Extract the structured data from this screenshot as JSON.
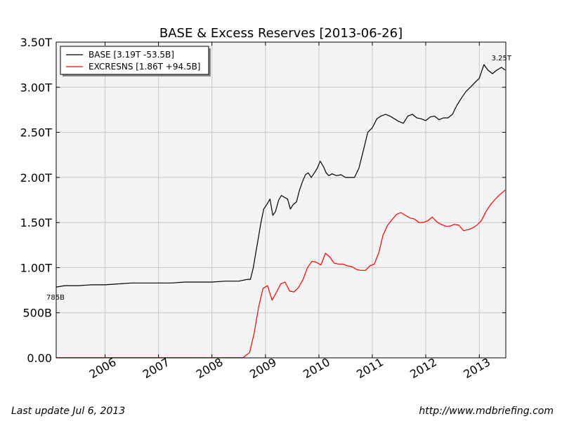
{
  "chart_data": {
    "type": "line",
    "title": "BASE & Excess Reserves  [2013-06-26]",
    "xlabel": "",
    "ylabel": "",
    "xlim": [
      "2005-02-01",
      "2013-07-01"
    ],
    "ylim": [
      0,
      3.5
    ],
    "grid": true,
    "legend_position": "top-left",
    "x_ticks": [
      {
        "date": "2006-01-01",
        "label": "2006"
      },
      {
        "date": "2007-01-01",
        "label": "2007"
      },
      {
        "date": "2008-01-01",
        "label": "2008"
      },
      {
        "date": "2009-01-01",
        "label": "2009"
      },
      {
        "date": "2010-01-01",
        "label": "2010"
      },
      {
        "date": "2011-01-01",
        "label": "2011"
      },
      {
        "date": "2012-01-01",
        "label": "2012"
      },
      {
        "date": "2013-01-01",
        "label": "2013"
      }
    ],
    "y_ticks": [
      {
        "value": 0,
        "label": "0.00"
      },
      {
        "value": 0.5,
        "label": "500B"
      },
      {
        "value": 1.0,
        "label": "1.00T"
      },
      {
        "value": 1.5,
        "label": "1.50T"
      },
      {
        "value": 2.0,
        "label": "2.00T"
      },
      {
        "value": 2.5,
        "label": "2.50T"
      },
      {
        "value": 3.0,
        "label": "3.00T"
      },
      {
        "value": 3.5,
        "label": "3.50T"
      }
    ],
    "series": [
      {
        "name": "BASE [3.19T -53.5B]",
        "color": "#000000",
        "x": [
          "2005-02-01",
          "2005-04-01",
          "2005-07-01",
          "2005-10-01",
          "2006-01-01",
          "2006-04-01",
          "2006-07-01",
          "2006-10-01",
          "2007-01-01",
          "2007-04-01",
          "2007-07-01",
          "2007-10-01",
          "2008-01-01",
          "2008-04-01",
          "2008-07-01",
          "2008-09-01",
          "2008-09-20",
          "2008-10-10",
          "2008-10-25",
          "2008-11-10",
          "2008-12-01",
          "2008-12-20",
          "2009-01-10",
          "2009-02-01",
          "2009-02-20",
          "2009-03-10",
          "2009-04-01",
          "2009-04-20",
          "2009-05-10",
          "2009-06-01",
          "2009-06-20",
          "2009-07-10",
          "2009-08-01",
          "2009-08-20",
          "2009-09-10",
          "2009-10-01",
          "2009-10-20",
          "2009-11-10",
          "2009-12-01",
          "2009-12-20",
          "2010-01-10",
          "2010-02-01",
          "2010-02-20",
          "2010-03-10",
          "2010-04-01",
          "2010-05-01",
          "2010-06-01",
          "2010-07-01",
          "2010-08-01",
          "2010-09-01",
          "2010-10-01",
          "2010-11-01",
          "2010-12-01",
          "2011-01-01",
          "2011-02-01",
          "2011-03-01",
          "2011-04-01",
          "2011-05-01",
          "2011-06-01",
          "2011-07-01",
          "2011-08-01",
          "2011-09-01",
          "2011-10-01",
          "2011-11-01",
          "2011-12-01",
          "2012-01-01",
          "2012-02-01",
          "2012-03-01",
          "2012-04-01",
          "2012-05-01",
          "2012-06-01",
          "2012-07-01",
          "2012-08-01",
          "2012-09-01",
          "2012-10-01",
          "2012-11-01",
          "2012-12-01",
          "2013-01-01",
          "2013-02-01",
          "2013-03-01",
          "2013-04-01",
          "2013-05-01",
          "2013-06-01",
          "2013-06-26"
        ],
        "values": [
          0.785,
          0.8,
          0.8,
          0.81,
          0.81,
          0.82,
          0.83,
          0.83,
          0.83,
          0.83,
          0.84,
          0.84,
          0.84,
          0.85,
          0.85,
          0.87,
          0.87,
          1.0,
          1.15,
          1.3,
          1.5,
          1.65,
          1.7,
          1.76,
          1.58,
          1.62,
          1.75,
          1.8,
          1.78,
          1.76,
          1.65,
          1.7,
          1.73,
          1.85,
          1.95,
          2.03,
          2.05,
          2.0,
          2.05,
          2.1,
          2.18,
          2.12,
          2.05,
          2.02,
          2.04,
          2.02,
          2.03,
          2.0,
          2.0,
          2.0,
          2.1,
          2.3,
          2.5,
          2.55,
          2.65,
          2.68,
          2.7,
          2.68,
          2.65,
          2.62,
          2.6,
          2.68,
          2.7,
          2.66,
          2.65,
          2.63,
          2.67,
          2.68,
          2.64,
          2.66,
          2.66,
          2.7,
          2.8,
          2.88,
          2.95,
          3.0,
          3.05,
          3.1,
          3.25,
          3.19,
          3.15,
          3.19,
          3.22,
          3.19
        ]
      },
      {
        "name": "EXCRESNS [1.86T +94.5B]",
        "color": "#ff0000",
        "x": [
          "2005-02-01",
          "2008-08-01",
          "2008-09-15",
          "2008-10-15",
          "2008-11-15",
          "2008-12-15",
          "2009-01-15",
          "2009-02-15",
          "2009-03-15",
          "2009-04-15",
          "2009-05-15",
          "2009-06-15",
          "2009-07-15",
          "2009-08-15",
          "2009-09-15",
          "2009-10-15",
          "2009-11-15",
          "2009-12-15",
          "2010-01-15",
          "2010-02-15",
          "2010-03-15",
          "2010-04-15",
          "2010-05-15",
          "2010-06-15",
          "2010-07-15",
          "2010-08-15",
          "2010-09-15",
          "2010-10-15",
          "2010-11-15",
          "2010-12-15",
          "2011-01-15",
          "2011-02-15",
          "2011-03-15",
          "2011-04-15",
          "2011-05-15",
          "2011-06-15",
          "2011-07-15",
          "2011-08-15",
          "2011-09-15",
          "2011-10-15",
          "2011-11-15",
          "2011-12-15",
          "2012-01-15",
          "2012-02-15",
          "2012-03-15",
          "2012-04-15",
          "2012-05-15",
          "2012-06-15",
          "2012-07-15",
          "2012-08-15",
          "2012-09-15",
          "2012-10-15",
          "2012-11-15",
          "2012-12-15",
          "2013-01-15",
          "2013-02-15",
          "2013-03-15",
          "2013-04-15",
          "2013-05-15",
          "2013-06-26"
        ],
        "values": [
          0.002,
          0.002,
          0.06,
          0.27,
          0.56,
          0.77,
          0.8,
          0.64,
          0.72,
          0.82,
          0.84,
          0.74,
          0.73,
          0.78,
          0.87,
          1.0,
          1.07,
          1.06,
          1.03,
          1.16,
          1.12,
          1.05,
          1.04,
          1.04,
          1.02,
          1.01,
          0.98,
          0.97,
          0.97,
          1.02,
          1.04,
          1.17,
          1.36,
          1.47,
          1.53,
          1.59,
          1.61,
          1.58,
          1.55,
          1.54,
          1.5,
          1.5,
          1.52,
          1.56,
          1.51,
          1.48,
          1.46,
          1.46,
          1.48,
          1.47,
          1.41,
          1.42,
          1.44,
          1.47,
          1.52,
          1.62,
          1.69,
          1.75,
          1.8,
          1.86
        ]
      }
    ],
    "annotations": [
      {
        "text": "785B",
        "x": "2005-02-01",
        "y": 0.785,
        "position": "below-left"
      },
      {
        "text": "3.25T",
        "x": "2013-06-01",
        "y": 3.25,
        "position": "above"
      }
    ]
  },
  "footer": {
    "last_update": "Last update Jul  6, 2013",
    "url": "http://www.mdbriefing.com"
  }
}
